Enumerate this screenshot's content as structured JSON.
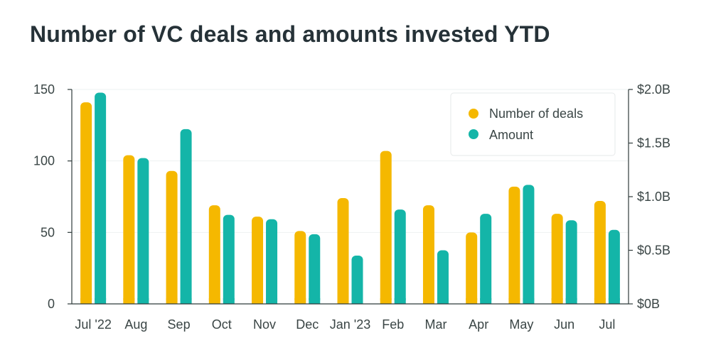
{
  "chart_data": {
    "type": "bar",
    "title": "Number of VC deals and amounts invested YTD",
    "categories": [
      "Jul '22",
      "Aug",
      "Sep",
      "Oct",
      "Nov",
      "Dec",
      "Jan '23",
      "Feb",
      "Mar",
      "Apr",
      "May",
      "Jun",
      "Jul"
    ],
    "series": [
      {
        "name": "Number of deals",
        "axis": "left",
        "color": "#f5b800",
        "values": [
          141,
          104,
          93,
          69,
          61,
          51,
          74,
          107,
          69,
          50,
          82,
          63,
          72
        ]
      },
      {
        "name": "Amount",
        "axis": "right",
        "color": "#14b5a8",
        "values": [
          1.97,
          1.36,
          1.63,
          0.83,
          0.79,
          0.65,
          0.45,
          0.88,
          0.5,
          0.84,
          1.11,
          0.78,
          0.69
        ]
      }
    ],
    "y_left": {
      "ylim": [
        0,
        150
      ],
      "ticks": [
        0,
        50,
        100,
        150
      ],
      "tick_labels": [
        "0",
        "50",
        "100",
        "150"
      ]
    },
    "y_right": {
      "ylim": [
        0,
        2.0
      ],
      "ticks": [
        0,
        0.5,
        1.0,
        1.5,
        2.0
      ],
      "tick_labels": [
        "$0B",
        "$0.5B",
        "$1.0B",
        "$1.5B",
        "$2.0B"
      ]
    },
    "grid": true,
    "legend_position": "top-right"
  }
}
